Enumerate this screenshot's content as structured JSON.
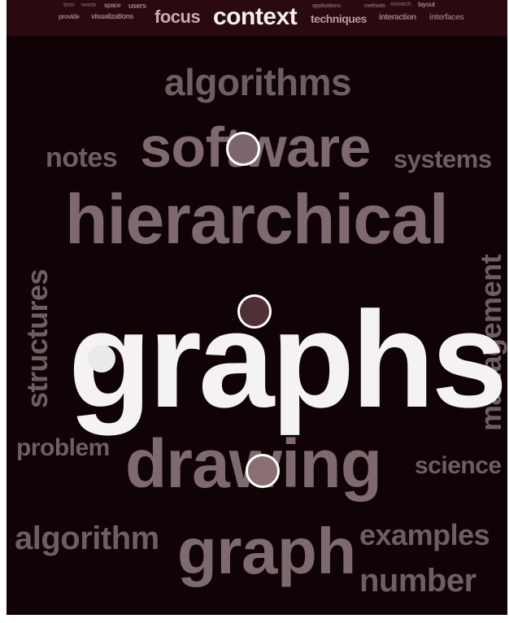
{
  "topbar": {
    "small_words": [
      "term",
      "words",
      "space",
      "users",
      "provide",
      "visualizations",
      "applications",
      "methods",
      "research",
      "layout",
      "interaction",
      "interfaces"
    ],
    "focus": "focus",
    "context": "context",
    "techniques": "techniques"
  },
  "words": {
    "algorithms": "algorithms",
    "software": "software",
    "notes": "notes",
    "systems": "systems",
    "hierarchical": "hierarchical",
    "structures": "structures",
    "management": "management",
    "graphs": "graphs",
    "problem": "problem",
    "drawing": "drawing",
    "science": "science",
    "algorithm": "algorithm",
    "graph": "graph",
    "examples": "examples",
    "number": "number"
  },
  "colors": {
    "background": "#0f0306",
    "topbar": "#2a0a10",
    "word_dim": "#6f5d62",
    "word_hero": "#f4f2f2",
    "dot_fill": "#7a5a60",
    "dot_ring": "#ffffff"
  }
}
